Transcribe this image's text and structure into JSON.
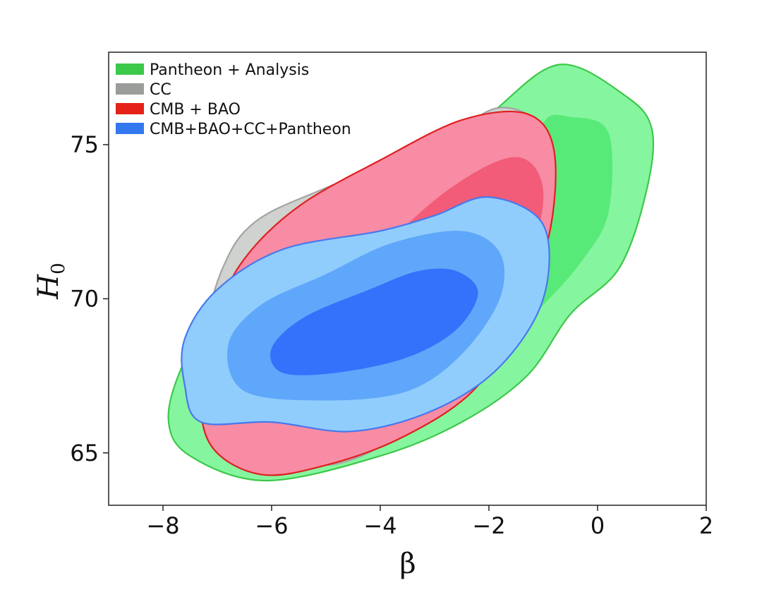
{
  "chart_data": {
    "type": "contour",
    "title": "",
    "xlabel": "β",
    "ylabel": "H",
    "ylabel_subscript": "0",
    "xlim": [
      -9,
      2
    ],
    "ylim": [
      63.3,
      78.0
    ],
    "xticks": [
      -8,
      -6,
      -4,
      -2,
      0,
      2
    ],
    "yticks": [
      65,
      70,
      75
    ],
    "xtick_labels": [
      "−8",
      "−6",
      "−4",
      "−2",
      "0",
      "2"
    ],
    "ytick_labels": [
      "65",
      "70",
      "75"
    ],
    "legend_position": "top-left",
    "series": [
      {
        "name": "Pantheon + Analysis",
        "colors": {
          "outer": "#86f59f",
          "inner": "#58ea78",
          "edge": "#3cc84a",
          "legend": "#3cc84a"
        },
        "levels": [
          {
            "level": "2sigma",
            "points": [
              [
                -0.7,
                77.6
              ],
              [
                0.5,
                76.6
              ],
              [
                1.0,
                75.5
              ],
              [
                0.9,
                73.5
              ],
              [
                0.4,
                71.0
              ],
              [
                -0.5,
                69.5
              ],
              [
                -1.3,
                67.5
              ],
              [
                -2.5,
                66.0
              ],
              [
                -4.0,
                64.9
              ],
              [
                -6.1,
                64.1
              ],
              [
                -7.5,
                64.9
              ],
              [
                -7.9,
                66.1
              ],
              [
                -7.6,
                68.0
              ],
              [
                -6.9,
                70.0
              ],
              [
                -6.0,
                71.5
              ],
              [
                -4.5,
                72.8
              ],
              [
                -3.0,
                74.3
              ],
              [
                -1.9,
                76.1
              ]
            ]
          },
          {
            "level": "1sigma",
            "points": [
              [
                -0.5,
                75.9
              ],
              [
                0.2,
                75.4
              ],
              [
                0.2,
                72.8
              ],
              [
                -0.3,
                71.2
              ],
              [
                -1.0,
                69.8
              ],
              [
                -1.5,
                69.0
              ],
              [
                -1.8,
                71.0
              ],
              [
                -1.3,
                73.5
              ],
              [
                -1.0,
                75.7
              ]
            ]
          }
        ]
      },
      {
        "name": "CC",
        "colors": {
          "outer": "#cfd2cf",
          "inner": "#b4b8b4",
          "edge": "#a2a5a2",
          "legend": "#9a9d9a"
        },
        "levels": [
          {
            "level": "2sigma",
            "points": [
              [
                -1.8,
                76.2
              ],
              [
                -0.9,
                75.3
              ],
              [
                -0.9,
                73.0
              ],
              [
                -1.3,
                70.0
              ],
              [
                -2.2,
                67.5
              ],
              [
                -3.5,
                65.7
              ],
              [
                -5.0,
                64.6
              ],
              [
                -6.5,
                65.4
              ],
              [
                -7.4,
                66.5
              ],
              [
                -7.3,
                68.5
              ],
              [
                -6.9,
                71.0
              ],
              [
                -6.3,
                72.5
              ],
              [
                -5.0,
                73.6
              ],
              [
                -3.0,
                75.0
              ]
            ]
          }
        ]
      },
      {
        "name": "CMB + BAO",
        "colors": {
          "outer": "#f78ca4",
          "inner": "#f25c78",
          "edge": "#e01f1f",
          "legend": "#e42218"
        },
        "levels": [
          {
            "level": "2sigma",
            "points": [
              [
                -1.3,
                76.0
              ],
              [
                -0.8,
                74.8
              ],
              [
                -0.9,
                72.0
              ],
              [
                -1.5,
                69.2
              ],
              [
                -2.3,
                67.0
              ],
              [
                -3.6,
                65.5
              ],
              [
                -5.0,
                64.6
              ],
              [
                -6.2,
                64.3
              ],
              [
                -7.1,
                65.2
              ],
              [
                -7.3,
                67.0
              ],
              [
                -7.0,
                69.5
              ],
              [
                -6.5,
                71.3
              ],
              [
                -5.5,
                73.0
              ],
              [
                -4.0,
                74.5
              ],
              [
                -2.5,
                75.8
              ]
            ]
          },
          {
            "level": "1sigma",
            "points": [
              [
                -1.5,
                74.6
              ],
              [
                -1.0,
                73.5
              ],
              [
                -1.3,
                71.0
              ],
              [
                -2.0,
                68.5
              ],
              [
                -3.0,
                67.0
              ],
              [
                -4.2,
                66.2
              ],
              [
                -5.2,
                66.6
              ],
              [
                -5.0,
                69.0
              ],
              [
                -4.0,
                71.5
              ],
              [
                -2.7,
                73.6
              ]
            ]
          }
        ]
      },
      {
        "name": "CMB+BAO+CC+Pantheon",
        "colors": {
          "outer": "#91cdfc",
          "mid": "#5fa7fa",
          "inner": "#3472fb",
          "edge": "#4778ee",
          "legend": "#3478f0"
        },
        "levels": [
          {
            "level": "2sigma",
            "points": [
              [
                -2.0,
                73.3
              ],
              [
                -1.0,
                72.4
              ],
              [
                -1.0,
                70.0
              ],
              [
                -1.8,
                67.8
              ],
              [
                -3.0,
                66.4
              ],
              [
                -4.5,
                65.7
              ],
              [
                -6.0,
                66.0
              ],
              [
                -7.3,
                66.0
              ],
              [
                -7.6,
                67.2
              ],
              [
                -7.6,
                68.7
              ],
              [
                -7.0,
                70.3
              ],
              [
                -5.8,
                71.6
              ],
              [
                -4.0,
                72.2
              ],
              [
                -3.0,
                72.7
              ]
            ]
          },
          {
            "level": "1sigma",
            "points": [
              [
                -2.5,
                72.2
              ],
              [
                -1.8,
                71.5
              ],
              [
                -1.8,
                70.0
              ],
              [
                -2.5,
                68.2
              ],
              [
                -3.5,
                67.0
              ],
              [
                -5.0,
                66.7
              ],
              [
                -6.5,
                67.0
              ],
              [
                -6.8,
                68.5
              ],
              [
                -6.2,
                69.8
              ],
              [
                -5.0,
                70.8
              ],
              [
                -3.8,
                71.8
              ]
            ]
          },
          {
            "level": "0.5sigma",
            "points": [
              [
                -2.6,
                70.9
              ],
              [
                -2.2,
                70.2
              ],
              [
                -2.6,
                69.0
              ],
              [
                -3.5,
                68.1
              ],
              [
                -4.8,
                67.6
              ],
              [
                -5.8,
                67.6
              ],
              [
                -6.0,
                68.4
              ],
              [
                -5.4,
                69.4
              ],
              [
                -4.2,
                70.3
              ],
              [
                -3.3,
                70.9
              ]
            ]
          }
        ]
      }
    ]
  }
}
